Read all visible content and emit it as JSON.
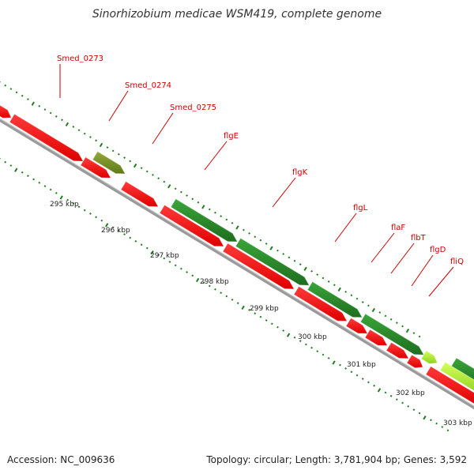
{
  "title": "Sinorhizobium medicae WSM419, complete genome",
  "footer": {
    "accession": "Accession: NC_009636",
    "topology": "Topology: circular; Length: 3,781,904 bp; Genes: 3,592"
  },
  "colors": {
    "forward_gene": "#2f8f2f",
    "forward_gene_light": "#b6f03a",
    "forward_gene_olive": "#7f9a2a",
    "reverse_gene": "#ff1a1a",
    "backbone": "#8a8a8a",
    "tick": "#1f7a1f",
    "label": "#cc0000"
  },
  "scale": {
    "unit": "kbp",
    "labels": [
      "295 kbp",
      "296 kbp",
      "297 kbp",
      "298 kbp",
      "299 kbp",
      "300 kbp",
      "301 kbp",
      "302 kbp",
      "303 kbp"
    ]
  },
  "gene_labels": [
    "Smed_0273",
    "Smed_0274",
    "Smed_0275",
    "flgE",
    "flgK",
    "flgL",
    "flaF",
    "flbT",
    "flgD",
    "fliQ"
  ]
}
